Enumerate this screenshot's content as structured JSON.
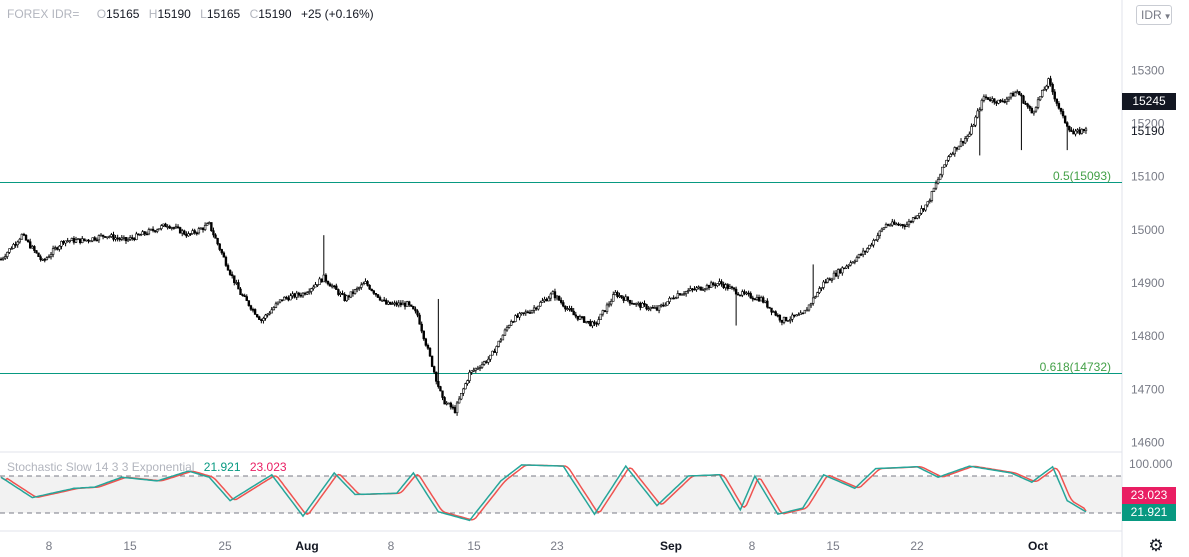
{
  "header": {
    "symbol": "FOREX IDR=",
    "open_label": "O",
    "open": "15165",
    "high_label": "H",
    "high": "15190",
    "low_label": "L",
    "low": "15165",
    "close_label": "C",
    "close": "15190",
    "change": "+25 (+0.16%)"
  },
  "currency_selector": {
    "label": "IDR"
  },
  "icons": {
    "currency_chevron": "chevron-down-icon",
    "settings": "gear-icon"
  },
  "colors": {
    "candle": "#000000",
    "level_line": "#089981",
    "level_text": "#43a047",
    "k_line": "#26a69a",
    "d_line": "#ef5350",
    "last_tag_bg": "#131722",
    "k_tag_bg": "#089981",
    "d_tag_bg": "#e91e63"
  },
  "price_axis": {
    "ticks": [
      "15300",
      "15200",
      "15100",
      "15000",
      "14900",
      "14800",
      "14700",
      "14600"
    ],
    "last_price_tag": "15245",
    "close_label": "15190"
  },
  "stoch_axis": {
    "top_label": "100.000"
  },
  "time_axis": {
    "labels": [
      {
        "text": "8",
        "bold": false
      },
      {
        "text": "15",
        "bold": false
      },
      {
        "text": "25",
        "bold": false
      },
      {
        "text": "Aug",
        "bold": true
      },
      {
        "text": "8",
        "bold": false
      },
      {
        "text": "15",
        "bold": false
      },
      {
        "text": "23",
        "bold": false
      },
      {
        "text": "Sep",
        "bold": true
      },
      {
        "text": "8",
        "bold": false
      },
      {
        "text": "15",
        "bold": false
      },
      {
        "text": "22",
        "bold": false
      },
      {
        "text": "Oct",
        "bold": true
      }
    ]
  },
  "stochastic": {
    "name": "Stochastic Slow 14 3 3 Exponential",
    "k_value": "21.921",
    "d_value": "23.023",
    "upper_band": 80,
    "lower_band": 20
  },
  "fib_levels": [
    {
      "label": "0.5(15093)",
      "price": 15093
    },
    {
      "label": "0.618(14732)",
      "price": 14732
    }
  ],
  "chart_data": {
    "type": "candlestick",
    "title": "FOREX IDR=",
    "price_range": [
      14580,
      15360
    ],
    "anchors": [
      {
        "bar": 0,
        "price": 14945
      },
      {
        "bar": 10,
        "price": 14990
      },
      {
        "bar": 20,
        "price": 14940
      },
      {
        "bar": 30,
        "price": 14980
      },
      {
        "bar": 40,
        "price": 14980
      },
      {
        "bar": 50,
        "price": 14990
      },
      {
        "bar": 60,
        "price": 14980
      },
      {
        "bar": 70,
        "price": 14995
      },
      {
        "bar": 80,
        "price": 15010
      },
      {
        "bar": 90,
        "price": 14990
      },
      {
        "bar": 100,
        "price": 15010
      },
      {
        "bar": 110,
        "price": 14920
      },
      {
        "bar": 115,
        "price": 14880
      },
      {
        "bar": 125,
        "price": 14830
      },
      {
        "bar": 135,
        "price": 14870
      },
      {
        "bar": 145,
        "price": 14880
      },
      {
        "bar": 155,
        "price": 14910
      },
      {
        "bar": 165,
        "price": 14870
      },
      {
        "bar": 175,
        "price": 14900
      },
      {
        "bar": 185,
        "price": 14860
      },
      {
        "bar": 195,
        "price": 14860
      },
      {
        "bar": 200,
        "price": 14840
      },
      {
        "bar": 206,
        "price": 14760
      },
      {
        "bar": 212,
        "price": 14680
      },
      {
        "bar": 218,
        "price": 14660
      },
      {
        "bar": 225,
        "price": 14730
      },
      {
        "bar": 235,
        "price": 14760
      },
      {
        "bar": 245,
        "price": 14830
      },
      {
        "bar": 255,
        "price": 14850
      },
      {
        "bar": 265,
        "price": 14880
      },
      {
        "bar": 275,
        "price": 14840
      },
      {
        "bar": 285,
        "price": 14820
      },
      {
        "bar": 295,
        "price": 14880
      },
      {
        "bar": 305,
        "price": 14860
      },
      {
        "bar": 315,
        "price": 14850
      },
      {
        "bar": 325,
        "price": 14880
      },
      {
        "bar": 335,
        "price": 14890
      },
      {
        "bar": 345,
        "price": 14900
      },
      {
        "bar": 355,
        "price": 14880
      },
      {
        "bar": 365,
        "price": 14870
      },
      {
        "bar": 375,
        "price": 14830
      },
      {
        "bar": 385,
        "price": 14840
      },
      {
        "bar": 395,
        "price": 14900
      },
      {
        "bar": 405,
        "price": 14930
      },
      {
        "bar": 415,
        "price": 14960
      },
      {
        "bar": 425,
        "price": 15010
      },
      {
        "bar": 435,
        "price": 15010
      },
      {
        "bar": 445,
        "price": 15050
      },
      {
        "bar": 455,
        "price": 15140
      },
      {
        "bar": 465,
        "price": 15180
      },
      {
        "bar": 472,
        "price": 15250
      },
      {
        "bar": 480,
        "price": 15240
      },
      {
        "bar": 488,
        "price": 15260
      },
      {
        "bar": 495,
        "price": 15220
      },
      {
        "bar": 503,
        "price": 15280
      },
      {
        "bar": 510,
        "price": 15210
      },
      {
        "bar": 515,
        "price": 15180
      },
      {
        "bar": 521,
        "price": 15190
      }
    ],
    "spikes": [
      {
        "bar": 155,
        "high": 14990
      },
      {
        "bar": 210,
        "high": 14870
      },
      {
        "bar": 353,
        "low": 14820
      },
      {
        "bar": 390,
        "high": 14935
      },
      {
        "bar": 470,
        "low": 15140
      },
      {
        "bar": 490,
        "low": 15150
      },
      {
        "bar": 512,
        "low": 15150
      }
    ],
    "stochastic_range": [
      0,
      100
    ],
    "stochastic_k_anchors": [
      {
        "bar": 0,
        "value": 78
      },
      {
        "bar": 15,
        "value": 45
      },
      {
        "bar": 35,
        "value": 60
      },
      {
        "bar": 45,
        "value": 62
      },
      {
        "bar": 58,
        "value": 78
      },
      {
        "bar": 75,
        "value": 72
      },
      {
        "bar": 90,
        "value": 88
      },
      {
        "bar": 100,
        "value": 78
      },
      {
        "bar": 110,
        "value": 40
      },
      {
        "bar": 130,
        "value": 82
      },
      {
        "bar": 145,
        "value": 15
      },
      {
        "bar": 160,
        "value": 85
      },
      {
        "bar": 170,
        "value": 50
      },
      {
        "bar": 190,
        "value": 52
      },
      {
        "bar": 198,
        "value": 85
      },
      {
        "bar": 210,
        "value": 22
      },
      {
        "bar": 225,
        "value": 8
      },
      {
        "bar": 240,
        "value": 72
      },
      {
        "bar": 250,
        "value": 98
      },
      {
        "bar": 270,
        "value": 96
      },
      {
        "bar": 285,
        "value": 18
      },
      {
        "bar": 300,
        "value": 96
      },
      {
        "bar": 315,
        "value": 32
      },
      {
        "bar": 330,
        "value": 80
      },
      {
        "bar": 345,
        "value": 82
      },
      {
        "bar": 355,
        "value": 25
      },
      {
        "bar": 362,
        "value": 80
      },
      {
        "bar": 373,
        "value": 18
      },
      {
        "bar": 385,
        "value": 28
      },
      {
        "bar": 395,
        "value": 82
      },
      {
        "bar": 410,
        "value": 60
      },
      {
        "bar": 420,
        "value": 92
      },
      {
        "bar": 440,
        "value": 95
      },
      {
        "bar": 450,
        "value": 78
      },
      {
        "bar": 465,
        "value": 96
      },
      {
        "bar": 485,
        "value": 85
      },
      {
        "bar": 495,
        "value": 70
      },
      {
        "bar": 505,
        "value": 95
      },
      {
        "bar": 512,
        "value": 40
      },
      {
        "bar": 521,
        "value": 21.921
      }
    ]
  }
}
